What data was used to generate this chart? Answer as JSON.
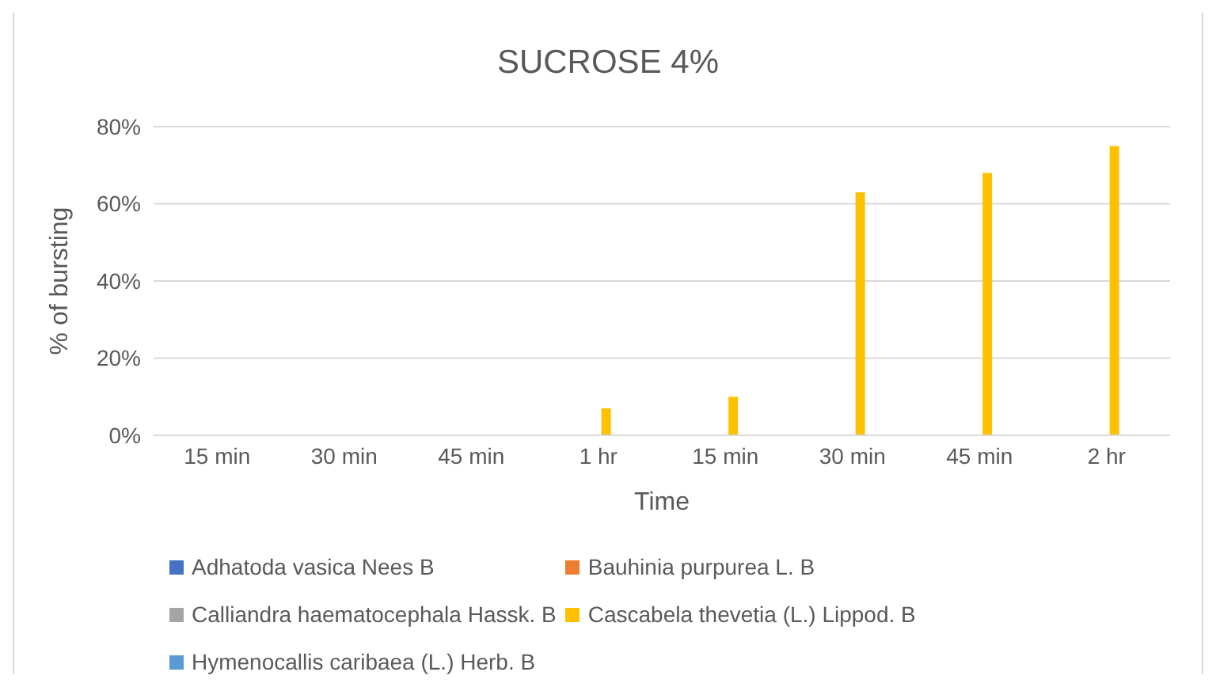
{
  "chart_data": {
    "type": "bar",
    "title": "SUCROSE 4%",
    "xlabel": "Time",
    "ylabel": "% of bursting",
    "categories": [
      "15 min",
      "30 min",
      "45 min",
      "1 hr",
      "15 min",
      "30 min",
      "45 min",
      "2 hr"
    ],
    "series": [
      {
        "name": "Adhatoda vasica Nees B",
        "color": "#4472c4",
        "values": [
          0,
          0,
          0,
          0,
          0,
          0,
          0,
          0
        ]
      },
      {
        "name": "Bauhinia purpurea L. B",
        "color": "#ed7d31",
        "values": [
          0,
          0,
          0,
          0,
          0,
          0,
          0,
          0
        ]
      },
      {
        "name": "Calliandra haematocephala Hassk. B",
        "color": "#a5a5a5",
        "values": [
          0,
          0,
          0,
          0,
          0,
          0,
          0,
          0
        ]
      },
      {
        "name": "Cascabela thevetia (L.) Lippod. B",
        "color": "#ffc000",
        "values": [
          0,
          0,
          0,
          7,
          10,
          63,
          68,
          75
        ]
      },
      {
        "name": "Hymenocallis caribaea (L.) Herb. B",
        "color": "#5b9bd5",
        "values": [
          0,
          0,
          0,
          0,
          0,
          0,
          0,
          0
        ]
      }
    ],
    "ylim": [
      0,
      80
    ],
    "yticks": [
      {
        "value": 0,
        "label": "0%"
      },
      {
        "value": 20,
        "label": "20%"
      },
      {
        "value": 40,
        "label": "40%"
      },
      {
        "value": 60,
        "label": "60%"
      },
      {
        "value": 80,
        "label": "80%"
      }
    ],
    "grid": "y",
    "legend": "bottom"
  }
}
